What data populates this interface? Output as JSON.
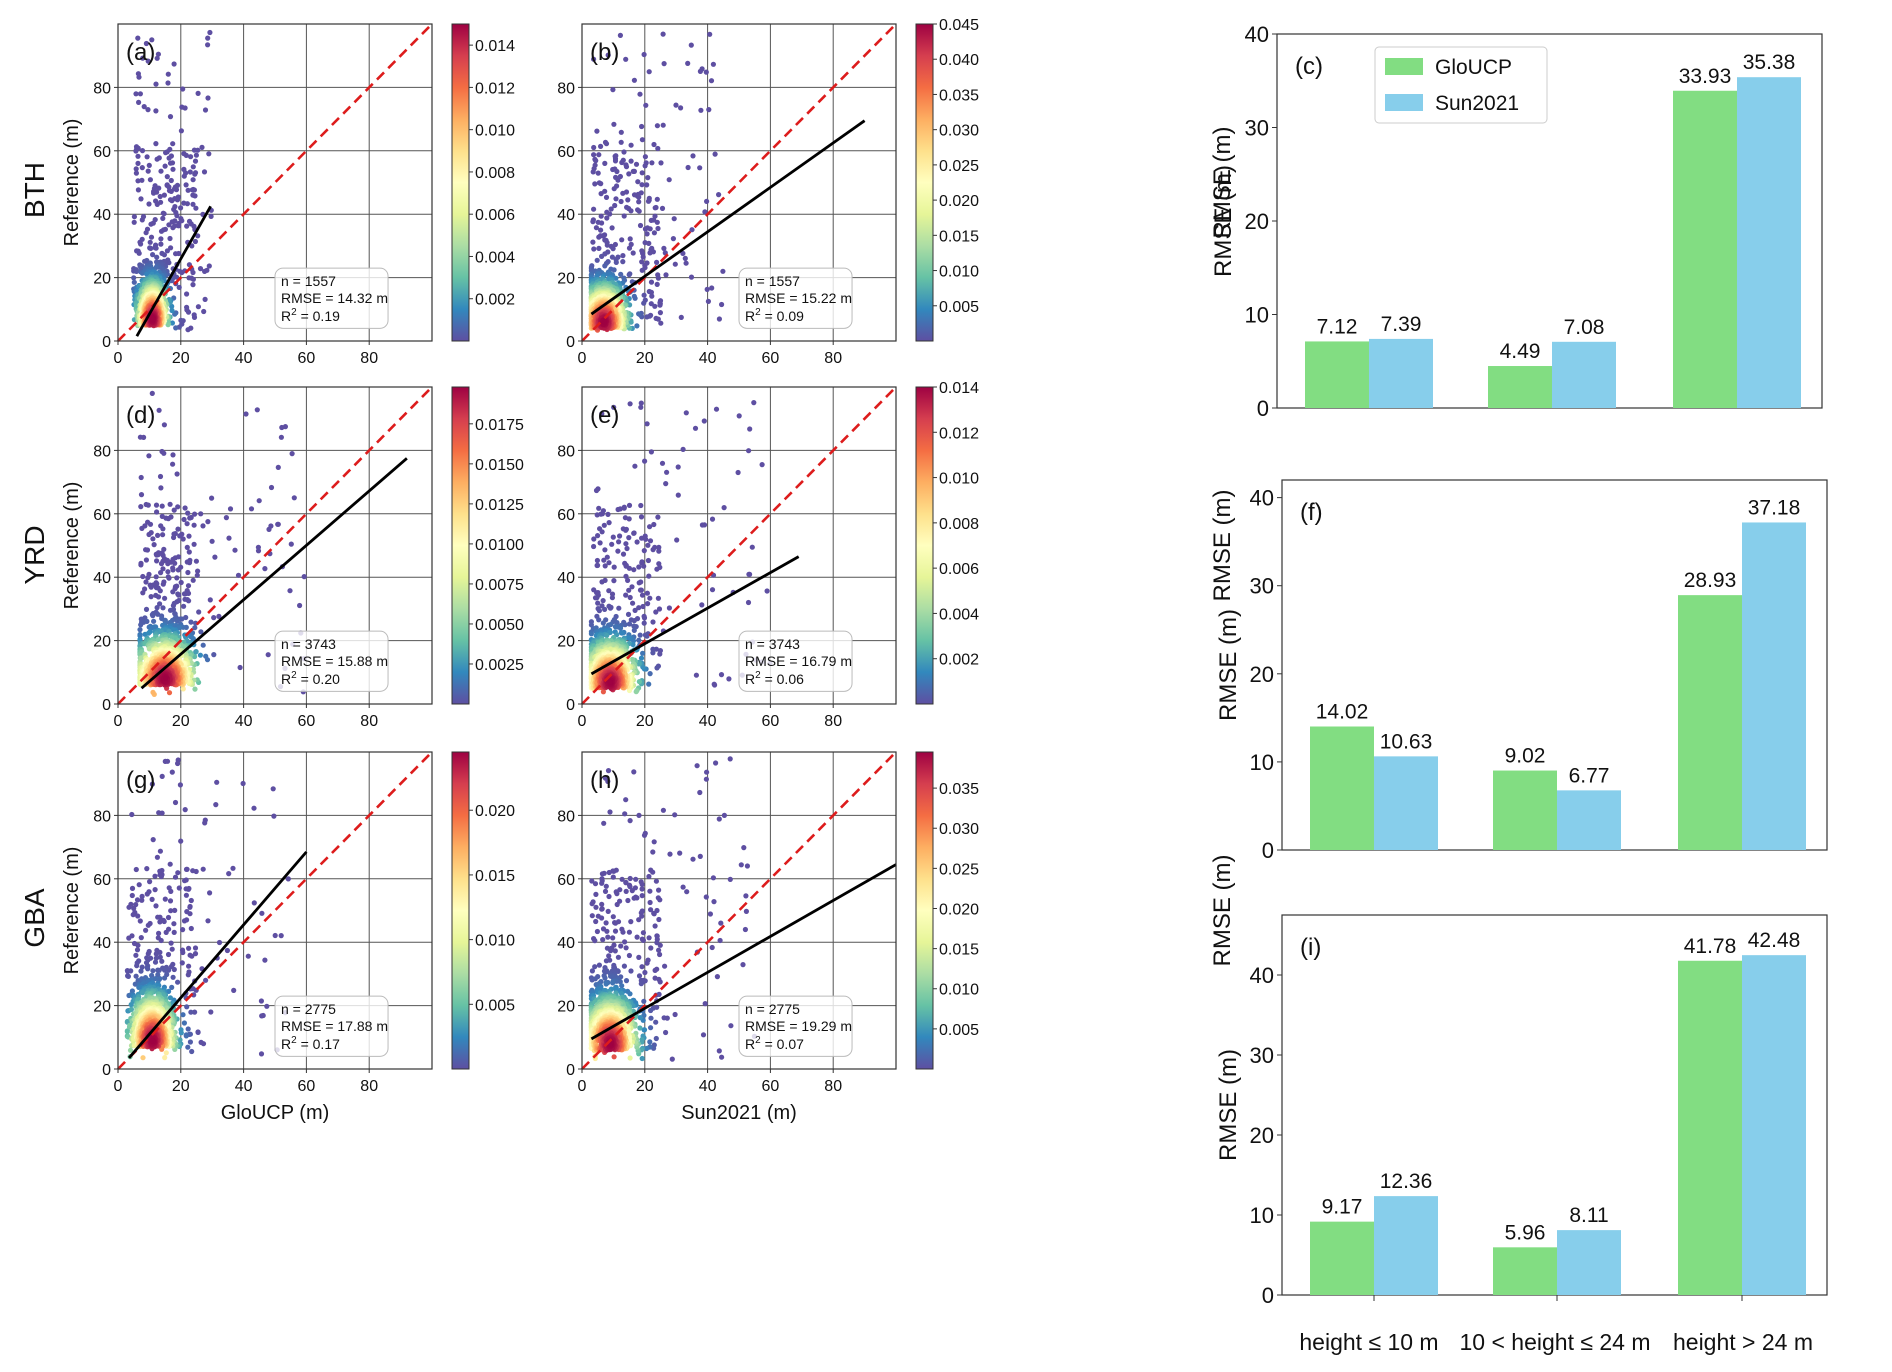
{
  "chart_data": {
    "type": "scatter",
    "layout": "3x3 panel grid: rows are regions, columns are GloUCP scatter, Sun2021 scatter, RMSE bar chart",
    "row_labels": [
      "BTH",
      "YRD",
      "GBA"
    ],
    "colorbar_label": "RMSE (m)",
    "scatter_panels": [
      {
        "id": "a",
        "panel_label": "(a)",
        "region": "BTH",
        "product": "GloUCP",
        "xlabel": "",
        "ylabel": "Reference (m)",
        "xlim": [
          0,
          100
        ],
        "ylim": [
          0,
          100
        ],
        "xticks": [
          "0",
          "20",
          "40",
          "60",
          "80"
        ],
        "yticks": [
          "0",
          "20",
          "40",
          "60",
          "80"
        ],
        "stats": {
          "n": "n = 1557",
          "rmse": "RMSE = 14.32 m",
          "r2_prefix": "R",
          "r2_suffix": " = 0.19"
        },
        "fit_line": {
          "x0": 6,
          "y0": 1.5,
          "x1": 29.5,
          "y1": 42.5
        },
        "identity_line": true,
        "density_center": [
          11,
          7
        ],
        "spread": [
          4,
          9
        ],
        "points_x_range": [
          5,
          30
        ],
        "colorbar": {
          "ticks": [
            "0.002",
            "0.004",
            "0.006",
            "0.008",
            "0.010",
            "0.012",
            "0.014"
          ],
          "max": 0.015
        }
      },
      {
        "id": "b",
        "panel_label": "(b)",
        "region": "BTH",
        "product": "Sun2021",
        "xlabel": "",
        "ylabel": "",
        "xlim": [
          0,
          100
        ],
        "ylim": [
          0,
          100
        ],
        "xticks": [
          "0",
          "20",
          "40",
          "60",
          "80"
        ],
        "yticks": [
          "0",
          "20",
          "40",
          "60",
          "80"
        ],
        "stats": {
          "n": "n = 1557",
          "rmse": "RMSE = 15.22 m",
          "r2_prefix": "R",
          "r2_suffix": " = 0.09"
        },
        "fit_line": {
          "x0": 3,
          "y0": 8.5,
          "x1": 90,
          "y1": 69.5
        },
        "identity_line": true,
        "density_center": [
          7,
          6
        ],
        "spread": [
          6,
          9
        ],
        "points_x_range": [
          3,
          45
        ],
        "colorbar": {
          "ticks": [
            "0.005",
            "0.010",
            "0.015",
            "0.020",
            "0.025",
            "0.030",
            "0.035",
            "0.040",
            "0.045"
          ],
          "max": 0.045
        }
      },
      {
        "id": "d",
        "panel_label": "(d)",
        "region": "YRD",
        "product": "GloUCP",
        "xlabel": "",
        "ylabel": "Reference (m)",
        "xlim": [
          0,
          100
        ],
        "ylim": [
          0,
          100
        ],
        "xticks": [
          "0",
          "20",
          "40",
          "60",
          "80"
        ],
        "yticks": [
          "0",
          "20",
          "40",
          "60",
          "80"
        ],
        "stats": {
          "n": "n = 3743",
          "rmse": "RMSE = 15.88 m",
          "r2_prefix": "R",
          "r2_suffix": " = 0.20"
        },
        "fit_line": {
          "x0": 7.5,
          "y0": 5,
          "x1": 92,
          "y1": 77.5
        },
        "identity_line": true,
        "density_center": [
          15,
          8
        ],
        "spread": [
          8,
          10
        ],
        "points_x_range": [
          7,
          60
        ],
        "colorbar": {
          "ticks": [
            "0.0025",
            "0.0050",
            "0.0075",
            "0.0100",
            "0.0125",
            "0.0150",
            "0.0175"
          ],
          "max": 0.0198
        }
      },
      {
        "id": "e",
        "panel_label": "(e)",
        "region": "YRD",
        "product": "Sun2021",
        "xlabel": "",
        "ylabel": "",
        "xlim": [
          0,
          100
        ],
        "ylim": [
          0,
          100
        ],
        "xticks": [
          "0",
          "20",
          "40",
          "60",
          "80"
        ],
        "yticks": [
          "0",
          "20",
          "40",
          "60",
          "80"
        ],
        "stats": {
          "n": "n = 3743",
          "rmse": "RMSE = 16.79 m",
          "r2_prefix": "R",
          "r2_suffix": " = 0.06"
        },
        "fit_line": {
          "x0": 3,
          "y0": 9.5,
          "x1": 69,
          "y1": 46.5
        },
        "identity_line": true,
        "density_center": [
          9,
          7
        ],
        "spread": [
          7,
          10
        ],
        "points_x_range": [
          3,
          60
        ],
        "colorbar": {
          "ticks": [
            "0.002",
            "0.004",
            "0.006",
            "0.008",
            "0.010",
            "0.012",
            "0.014"
          ],
          "max": 0.014
        }
      },
      {
        "id": "g",
        "panel_label": "(g)",
        "region": "GBA",
        "product": "GloUCP",
        "xlabel": "GloUCP (m)",
        "ylabel": "Reference (m)",
        "xlim": [
          0,
          100
        ],
        "ylim": [
          0,
          100
        ],
        "xticks": [
          "0",
          "20",
          "40",
          "60",
          "80"
        ],
        "yticks": [
          "0",
          "20",
          "40",
          "60",
          "80"
        ],
        "stats": {
          "n": "n = 2775",
          "rmse": "RMSE = 17.88 m",
          "r2_prefix": "R",
          "r2_suffix": " = 0.17"
        },
        "fit_line": {
          "x0": 3.5,
          "y0": 3.5,
          "x1": 60,
          "y1": 68.5
        },
        "identity_line": true,
        "density_center": [
          11,
          9
        ],
        "spread": [
          6,
          11
        ],
        "points_x_range": [
          3,
          55
        ],
        "colorbar": {
          "ticks": [
            "0.005",
            "0.010",
            "0.015",
            "0.020"
          ],
          "max": 0.0245
        }
      },
      {
        "id": "h",
        "panel_label": "(h)",
        "region": "GBA",
        "product": "Sun2021",
        "xlabel": "Sun2021 (m)",
        "ylabel": "",
        "xlim": [
          0,
          100
        ],
        "ylim": [
          0,
          100
        ],
        "xticks": [
          "0",
          "20",
          "40",
          "60",
          "80"
        ],
        "yticks": [
          "0",
          "20",
          "40",
          "60",
          "80"
        ],
        "stats": {
          "n": "n = 2775",
          "rmse": "RMSE = 19.29 m",
          "r2_prefix": "R",
          "r2_suffix": " = 0.07"
        },
        "fit_line": {
          "x0": 3,
          "y0": 9.5,
          "x1": 100,
          "y1": 64.5
        },
        "identity_line": true,
        "density_center": [
          9,
          8
        ],
        "spread": [
          7,
          11
        ],
        "points_x_range": [
          3,
          55
        ],
        "colorbar": {
          "ticks": [
            "0.005",
            "0.010",
            "0.015",
            "0.020",
            "0.025",
            "0.030",
            "0.035"
          ],
          "max": 0.0395
        }
      }
    ],
    "bar_panels": [
      {
        "id": "c",
        "panel_label": "(c)",
        "region": "BTH",
        "ylabel": "RMSE (m)",
        "ylim": [
          0,
          40
        ],
        "yticks": [
          "0",
          "10",
          "20",
          "30",
          "40"
        ],
        "show_legend": true,
        "series": [
          {
            "name": "GloUCP",
            "values": [
              7.12,
              4.49,
              33.93
            ]
          },
          {
            "name": "Sun2021",
            "values": [
              7.39,
              7.08,
              35.38
            ]
          }
        ],
        "value_labels": [
          [
            "7.12",
            "4.49",
            "33.93"
          ],
          [
            "7.39",
            "7.08",
            "35.38"
          ]
        ]
      },
      {
        "id": "f",
        "panel_label": "(f)",
        "region": "YRD",
        "ylabel": "RMSE (m)",
        "ylim": [
          0,
          42
        ],
        "yticks": [
          "0",
          "10",
          "20",
          "30",
          "40"
        ],
        "show_legend": false,
        "series": [
          {
            "name": "GloUCP",
            "values": [
              14.02,
              9.02,
              28.93
            ]
          },
          {
            "name": "Sun2021",
            "values": [
              10.63,
              6.77,
              37.18
            ]
          }
        ],
        "value_labels": [
          [
            "14.02",
            "9.02",
            "28.93"
          ],
          [
            "10.63",
            "6.77",
            "37.18"
          ]
        ]
      },
      {
        "id": "i",
        "panel_label": "(i)",
        "region": "GBA",
        "ylabel": "RMSE (m)",
        "ylim": [
          0,
          47.5
        ],
        "yticks": [
          "0",
          "10",
          "20",
          "30",
          "40"
        ],
        "show_legend": false,
        "series": [
          {
            "name": "GloUCP",
            "values": [
              9.17,
              5.96,
              41.78
            ]
          },
          {
            "name": "Sun2021",
            "values": [
              12.36,
              8.11,
              42.48
            ]
          }
        ],
        "value_labels": [
          [
            "9.17",
            "5.96",
            "41.78"
          ],
          [
            "12.36",
            "8.11",
            "42.48"
          ]
        ]
      }
    ],
    "categories": [
      "height ≤ 10 m",
      "10 < height ≤ 24 m",
      "height > 24 m"
    ],
    "legend": {
      "entries": [
        "GloUCP",
        "Sun2021"
      ],
      "position": "top-left"
    },
    "colors": {
      "GloUCP": "#82dd82",
      "Sun2021": "#87ceeb",
      "identity_line": "#dd1c1c",
      "fit_line": "#000000",
      "colormap": "Spectral_r"
    }
  }
}
